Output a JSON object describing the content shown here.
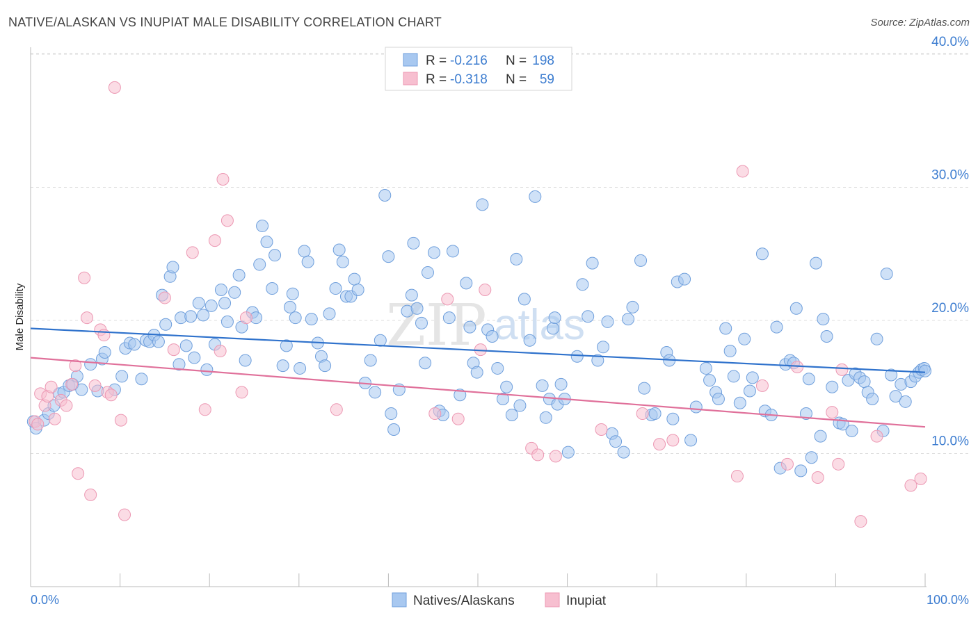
{
  "header": {
    "title": "NATIVE/ALASKAN VS INUPIAT MALE DISABILITY CORRELATION CHART",
    "source": "Source: ZipAtlas.com"
  },
  "watermark": {
    "part1": "ZIP",
    "part2": "atlas"
  },
  "colors": {
    "blue_fill": "#a8c8f0",
    "blue_stroke": "#6f9fdc",
    "blue_line": "#2f72cc",
    "pink_fill": "#f7bfd0",
    "pink_stroke": "#ec98b3",
    "pink_line": "#e0709a",
    "accent_text": "#3d7dd0",
    "grid": "#dddddd"
  },
  "legend": {
    "rows": [
      {
        "r_label": "R =",
        "r_value": "-0.216",
        "n_label": "N =",
        "n_value": "198"
      },
      {
        "r_label": "R =",
        "r_value": "-0.318",
        "n_label": "N =",
        "n_value": "59"
      }
    ]
  },
  "chart_data": {
    "type": "scatter",
    "title": "NATIVE/ALASKAN VS INUPIAT MALE DISABILITY CORRELATION CHART",
    "xlabel": "",
    "ylabel": "Male Disability",
    "xlim": [
      0,
      100
    ],
    "ylim": [
      0,
      41
    ],
    "x_tick_labels": [
      "0.0%",
      "100.0%"
    ],
    "y_ticks": [
      10,
      20,
      30,
      40
    ],
    "y_tick_labels": [
      "10.0%",
      "20.0%",
      "30.0%",
      "40.0%"
    ],
    "grid": true,
    "legend_position": "top-center",
    "series": [
      {
        "name": "Natives/Alaskans",
        "R": -0.216,
        "N": 198,
        "trend": {
          "x": [
            0,
            100
          ],
          "y": [
            19.4,
            16.1
          ]
        },
        "points": [
          [
            0.3,
            12.4
          ],
          [
            0.6,
            11.9
          ],
          [
            1.5,
            12.5
          ],
          [
            2,
            13
          ],
          [
            2.6,
            13.6
          ],
          [
            3.2,
            14.5
          ],
          [
            3.7,
            14.6
          ],
          [
            4.3,
            15.1
          ],
          [
            4.7,
            15.2
          ],
          [
            5.2,
            15.8
          ],
          [
            5.7,
            14.8
          ],
          [
            6.7,
            16.7
          ],
          [
            7.5,
            14.7
          ],
          [
            8,
            17.1
          ],
          [
            8.3,
            17.6
          ],
          [
            9.4,
            14.8
          ],
          [
            10.2,
            15.8
          ],
          [
            10.6,
            17.9
          ],
          [
            11.1,
            18.3
          ],
          [
            11.6,
            18.2
          ],
          [
            12.4,
            15.6
          ],
          [
            12.9,
            18.5
          ],
          [
            13.3,
            18.4
          ],
          [
            13.8,
            18.9
          ],
          [
            14.3,
            18.4
          ],
          [
            14.7,
            21.9
          ],
          [
            15.1,
            19.7
          ],
          [
            15.6,
            23.3
          ],
          [
            15.9,
            24.0
          ],
          [
            16.6,
            16.7
          ],
          [
            16.8,
            20.2
          ],
          [
            17.4,
            18.1
          ],
          [
            17.9,
            20.3
          ],
          [
            18.3,
            17.2
          ],
          [
            18.8,
            21.3
          ],
          [
            19.3,
            20.4
          ],
          [
            19.7,
            16.3
          ],
          [
            20.2,
            21.1
          ],
          [
            20.6,
            18.2
          ],
          [
            21.3,
            22.3
          ],
          [
            21.7,
            21.3
          ],
          [
            22,
            19.9
          ],
          [
            22.8,
            22.1
          ],
          [
            23.3,
            23.4
          ],
          [
            23.6,
            19.5
          ],
          [
            24,
            17.0
          ],
          [
            24.8,
            20.6
          ],
          [
            25.2,
            20.2
          ],
          [
            25.6,
            24.2
          ],
          [
            25.9,
            27.1
          ],
          [
            26.4,
            25.9
          ],
          [
            27,
            22.4
          ],
          [
            27.3,
            24.9
          ],
          [
            28.2,
            16.6
          ],
          [
            28.6,
            18.1
          ],
          [
            29,
            21.0
          ],
          [
            29.3,
            22.0
          ],
          [
            29.6,
            20.2
          ],
          [
            30.1,
            16.4
          ],
          [
            30.6,
            25.2
          ],
          [
            31,
            24.4
          ],
          [
            31.4,
            20.1
          ],
          [
            32.1,
            18.3
          ],
          [
            32.5,
            17.3
          ],
          [
            32.9,
            16.6
          ],
          [
            33.4,
            20.5
          ],
          [
            34.1,
            22.4
          ],
          [
            34.5,
            25.3
          ],
          [
            34.9,
            24.4
          ],
          [
            35.3,
            21.8
          ],
          [
            35.8,
            21.8
          ],
          [
            36.2,
            23.1
          ],
          [
            36.6,
            22.3
          ],
          [
            37.4,
            15.3
          ],
          [
            38,
            17.0
          ],
          [
            38.5,
            14.6
          ],
          [
            39.1,
            18.5
          ],
          [
            39.6,
            29.4
          ],
          [
            40,
            24.8
          ],
          [
            40.3,
            13.0
          ],
          [
            40.6,
            11.8
          ],
          [
            41.2,
            14.8
          ],
          [
            42.1,
            20.7
          ],
          [
            42.6,
            21.9
          ],
          [
            42.8,
            25.8
          ],
          [
            43.2,
            20.9
          ],
          [
            43.7,
            19.8
          ],
          [
            44.1,
            16.8
          ],
          [
            44.4,
            23.6
          ],
          [
            45.1,
            25.1
          ],
          [
            45.7,
            13.2
          ],
          [
            46.1,
            12.9
          ],
          [
            46.8,
            20.2
          ],
          [
            47.2,
            25.2
          ],
          [
            48,
            14.4
          ],
          [
            48.7,
            22.8
          ],
          [
            49.1,
            19.5
          ],
          [
            49.5,
            16.8
          ],
          [
            49.9,
            16.1
          ],
          [
            50.5,
            28.7
          ],
          [
            51.1,
            19.3
          ],
          [
            51.6,
            18.8
          ],
          [
            52.2,
            16.4
          ],
          [
            52.8,
            14.1
          ],
          [
            53.2,
            15.0
          ],
          [
            53.8,
            12.9
          ],
          [
            54.3,
            24.6
          ],
          [
            54.7,
            13.6
          ],
          [
            55.2,
            21.6
          ],
          [
            55.8,
            18.5
          ],
          [
            56.4,
            29.3
          ],
          [
            57.2,
            15.1
          ],
          [
            57.6,
            12.7
          ],
          [
            58,
            14.1
          ],
          [
            58.4,
            19.4
          ],
          [
            58.6,
            20.2
          ],
          [
            58.9,
            13.7
          ],
          [
            59.3,
            15.2
          ],
          [
            59.7,
            14.1
          ],
          [
            60.1,
            10.1
          ],
          [
            61.1,
            17.3
          ],
          [
            61.7,
            22.7
          ],
          [
            62.3,
            20.3
          ],
          [
            62.8,
            24.3
          ],
          [
            63.4,
            17.0
          ],
          [
            64,
            18.0
          ],
          [
            64.5,
            19.9
          ],
          [
            65,
            11.5
          ],
          [
            65.4,
            10.9
          ],
          [
            66.3,
            10.1
          ],
          [
            66.8,
            20.1
          ],
          [
            67.3,
            21.0
          ],
          [
            68.2,
            24.5
          ],
          [
            68.6,
            14.9
          ],
          [
            69.4,
            12.9
          ],
          [
            69.8,
            13.0
          ],
          [
            71.1,
            17.6
          ],
          [
            71.4,
            17.0
          ],
          [
            71.8,
            12.6
          ],
          [
            72.3,
            22.9
          ],
          [
            73.1,
            23.1
          ],
          [
            73.8,
            11.0
          ],
          [
            74.4,
            13.5
          ],
          [
            75.5,
            16.4
          ],
          [
            75.9,
            15.5
          ],
          [
            76.6,
            14.6
          ],
          [
            76.9,
            14.1
          ],
          [
            77.7,
            19.4
          ],
          [
            78.2,
            17.7
          ],
          [
            78.6,
            15.8
          ],
          [
            79.3,
            13.8
          ],
          [
            79.8,
            18.6
          ],
          [
            80.4,
            14.7
          ],
          [
            80.7,
            15.7
          ],
          [
            81.8,
            25.0
          ],
          [
            82.1,
            13.2
          ],
          [
            82.8,
            12.9
          ],
          [
            83.4,
            19.5
          ],
          [
            83.8,
            8.9
          ],
          [
            84.4,
            16.7
          ],
          [
            84.9,
            17.0
          ],
          [
            85.3,
            16.8
          ],
          [
            85.6,
            20.9
          ],
          [
            86.1,
            8.7
          ],
          [
            86.7,
            13.0
          ],
          [
            87,
            15.6
          ],
          [
            87.3,
            9.7
          ],
          [
            87.8,
            24.3
          ],
          [
            88.3,
            11.3
          ],
          [
            88.6,
            20.1
          ],
          [
            89,
            18.8
          ],
          [
            89.6,
            15.0
          ],
          [
            90.4,
            12.3
          ],
          [
            90.8,
            12.2
          ],
          [
            91.4,
            15.5
          ],
          [
            91.8,
            11.7
          ],
          [
            92.2,
            16.0
          ],
          [
            92.7,
            15.7
          ],
          [
            93.2,
            15.4
          ],
          [
            93.6,
            14.6
          ],
          [
            94.1,
            14.1
          ],
          [
            94.6,
            18.6
          ],
          [
            95.3,
            11.7
          ],
          [
            95.7,
            23.5
          ],
          [
            96.2,
            15.9
          ],
          [
            96.7,
            14.3
          ],
          [
            97.3,
            15.2
          ],
          [
            97.8,
            13.9
          ],
          [
            98.4,
            15.4
          ],
          [
            98.9,
            15.8
          ],
          [
            99.3,
            16.1
          ],
          [
            99.6,
            16.3
          ],
          [
            99.9,
            16.4
          ],
          [
            100,
            16.2
          ]
        ]
      },
      {
        "name": "Inupiat",
        "R": -0.318,
        "N": 59,
        "trend": {
          "x": [
            0,
            100
          ],
          "y": [
            17.2,
            12.0
          ]
        },
        "points": [
          [
            0.5,
            12.4
          ],
          [
            0.8,
            12.2
          ],
          [
            1.1,
            14.5
          ],
          [
            1.6,
            13.6
          ],
          [
            1.9,
            14.3
          ],
          [
            2.3,
            15.0
          ],
          [
            2.7,
            12.6
          ],
          [
            3.4,
            14.0
          ],
          [
            4,
            13.6
          ],
          [
            4.6,
            15.2
          ],
          [
            5,
            16.6
          ],
          [
            5.3,
            8.5
          ],
          [
            6,
            23.2
          ],
          [
            6.3,
            20.2
          ],
          [
            6.7,
            6.9
          ],
          [
            7.2,
            15.1
          ],
          [
            7.8,
            19.3
          ],
          [
            8.2,
            18.9
          ],
          [
            8.6,
            14.6
          ],
          [
            9,
            14.4
          ],
          [
            9.4,
            37.5
          ],
          [
            10.1,
            12.5
          ],
          [
            10.5,
            5.4
          ],
          [
            15,
            21.7
          ],
          [
            16,
            17.8
          ],
          [
            18.1,
            25.1
          ],
          [
            19.5,
            13.3
          ],
          [
            20.6,
            26.0
          ],
          [
            21.2,
            17.7
          ],
          [
            21.5,
            30.6
          ],
          [
            22,
            27.5
          ],
          [
            23.6,
            14.6
          ],
          [
            24.1,
            20.2
          ],
          [
            34.2,
            13.3
          ],
          [
            45.2,
            13.0
          ],
          [
            46.6,
            21.6
          ],
          [
            47.8,
            12.6
          ],
          [
            50.3,
            17.8
          ],
          [
            50.8,
            22.3
          ],
          [
            56,
            10.4
          ],
          [
            56.7,
            9.9
          ],
          [
            58.7,
            9.8
          ],
          [
            63.8,
            11.8
          ],
          [
            68.4,
            13.0
          ],
          [
            70.3,
            10.7
          ],
          [
            71.8,
            11.0
          ],
          [
            79.6,
            31.2
          ],
          [
            79,
            8.3
          ],
          [
            81.8,
            15.1
          ],
          [
            84.6,
            9.2
          ],
          [
            85.7,
            16.5
          ],
          [
            88,
            8.2
          ],
          [
            89.6,
            13.1
          ],
          [
            90.3,
            9.2
          ],
          [
            90.7,
            16.3
          ],
          [
            92.8,
            4.9
          ],
          [
            94.6,
            11.3
          ],
          [
            98.4,
            7.6
          ],
          [
            99.5,
            8.1
          ]
        ]
      }
    ]
  },
  "bottom_legend": {
    "items": [
      {
        "label": "Natives/Alaskans"
      },
      {
        "label": "Inupiat"
      }
    ]
  }
}
